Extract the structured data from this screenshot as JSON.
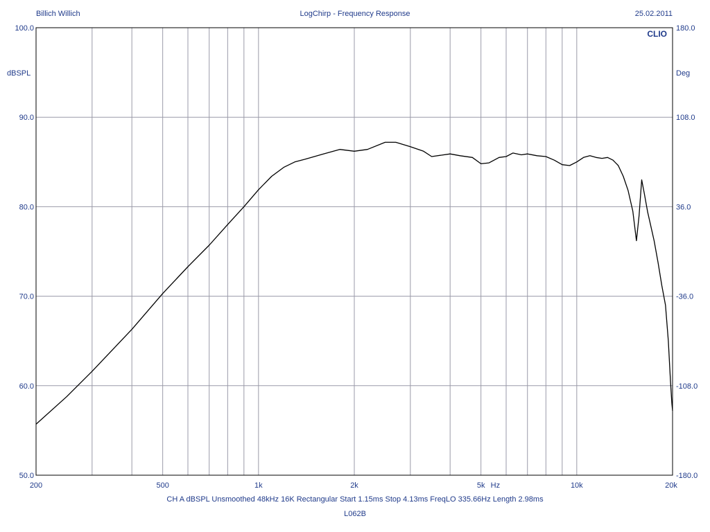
{
  "header": {
    "left": "Billich Willich",
    "center": "LogChirp - Frequency Response",
    "right": "25.02.2011",
    "brand": "CLIO"
  },
  "footer": {
    "settings": [
      "CH A",
      "dBSPL",
      "Unsmoothed",
      "48kHz",
      "16K",
      "Rectangular",
      "Start 1.15ms",
      "Stop 4.13ms",
      "FreqLO 335.66Hz",
      "Length 2.98ms"
    ],
    "label": "L062B"
  },
  "colors": {
    "text": "#1f3a8a",
    "grid": "#9a9aa8",
    "trace": "#000000",
    "border": "#000000"
  },
  "chart_data": {
    "type": "line",
    "title": "LogChirp - Frequency Response",
    "x_scale": "log",
    "xlim": [
      200,
      20000
    ],
    "ylim": [
      50,
      100
    ],
    "y2lim": [
      -180,
      180
    ],
    "ylabel": "dBSPL",
    "y2label": "Deg",
    "xlabel": "Hz",
    "grid": true,
    "x_grid": [
      300,
      400,
      500,
      600,
      700,
      800,
      900,
      1000,
      2000,
      3000,
      4000,
      5000,
      6000,
      7000,
      8000,
      9000,
      10000
    ],
    "x_ticks": [
      {
        "value": 200,
        "label": "200"
      },
      {
        "value": 500,
        "label": "500"
      },
      {
        "value": 1000,
        "label": "1k"
      },
      {
        "value": 2000,
        "label": "2k"
      },
      {
        "value": 5000,
        "label": "5k"
      },
      {
        "value": 10000,
        "label": "10k"
      },
      {
        "value": 20000,
        "label": "20k"
      }
    ],
    "y_ticks": [
      {
        "value": 100,
        "label": "100.0"
      },
      {
        "value": 90,
        "label": "90.0"
      },
      {
        "value": 80,
        "label": "80.0"
      },
      {
        "value": 70,
        "label": "70.0"
      },
      {
        "value": 60,
        "label": "60.0"
      },
      {
        "value": 50,
        "label": "50.0"
      }
    ],
    "y2_ticks": [
      {
        "value": 180,
        "label": "180.0"
      },
      {
        "value": 108,
        "label": "108.0"
      },
      {
        "value": 36,
        "label": "36.0"
      },
      {
        "value": -36,
        "label": "-36.0"
      },
      {
        "value": -108,
        "label": "-108.0"
      },
      {
        "value": -180,
        "label": "-180.0"
      }
    ],
    "series": [
      {
        "x": [
          200,
          250,
          300,
          400,
          500,
          600,
          700,
          800,
          900,
          1000,
          1100,
          1200,
          1300,
          1400,
          1600,
          1800,
          2000,
          2200,
          2500,
          2700,
          3000,
          3300,
          3500,
          4000,
          4300,
          4700,
          5000,
          5300,
          5700,
          6000,
          6300,
          6700,
          7000,
          7500,
          8000,
          8500,
          9000,
          9500,
          10000,
          10500,
          11000,
          11500,
          12000,
          12500,
          13000,
          13500,
          14000,
          14500,
          15000,
          15400,
          15700,
          16000,
          16300,
          16700,
          17000,
          17500,
          18000,
          18500,
          19000,
          19400,
          19700,
          19900,
          20000
        ],
        "y": [
          55.7,
          58.8,
          61.6,
          66.3,
          70.3,
          73.3,
          75.7,
          78.0,
          80.0,
          81.9,
          83.4,
          84.4,
          85.0,
          85.3,
          85.9,
          86.4,
          86.2,
          86.4,
          87.2,
          87.2,
          86.7,
          86.2,
          85.6,
          85.9,
          85.7,
          85.5,
          84.8,
          84.9,
          85.5,
          85.6,
          86.0,
          85.8,
          85.9,
          85.7,
          85.6,
          85.2,
          84.7,
          84.6,
          85.0,
          85.5,
          85.7,
          85.5,
          85.4,
          85.5,
          85.2,
          84.6,
          83.4,
          81.8,
          79.5,
          76.2,
          79.0,
          83.0,
          81.5,
          79.4,
          78.2,
          76.2,
          73.8,
          71.2,
          69.0,
          65.0,
          60.5,
          58.0,
          57.2
        ]
      }
    ]
  }
}
